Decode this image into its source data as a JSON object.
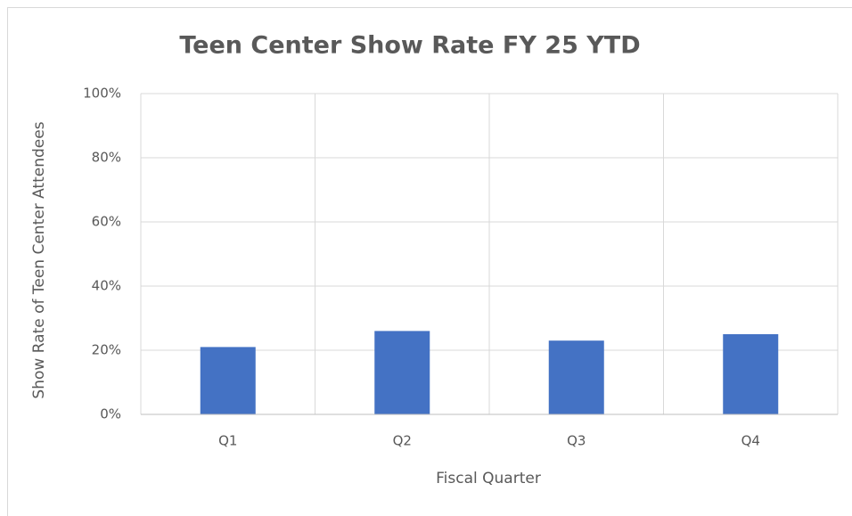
{
  "chart_data": {
    "type": "bar",
    "title": "Teen Center Show Rate FY 25 YTD",
    "x_label": "Fiscal Quarter",
    "y_label": "Show Rate of Teen Center Attendees",
    "categories": [
      "Q1",
      "Q2",
      "Q3",
      "Q4"
    ],
    "values": [
      21,
      26,
      23,
      25
    ],
    "color": "#4472c4",
    "ylim": [
      0,
      100
    ],
    "yticks": [
      {
        "value": 0,
        "label": "0%"
      },
      {
        "value": 20,
        "label": "20%"
      },
      {
        "value": 40,
        "label": "40%"
      },
      {
        "value": 60,
        "label": "60%"
      },
      {
        "value": 80,
        "label": "80%"
      },
      {
        "value": 100,
        "label": "100%"
      }
    ],
    "grid": true
  }
}
